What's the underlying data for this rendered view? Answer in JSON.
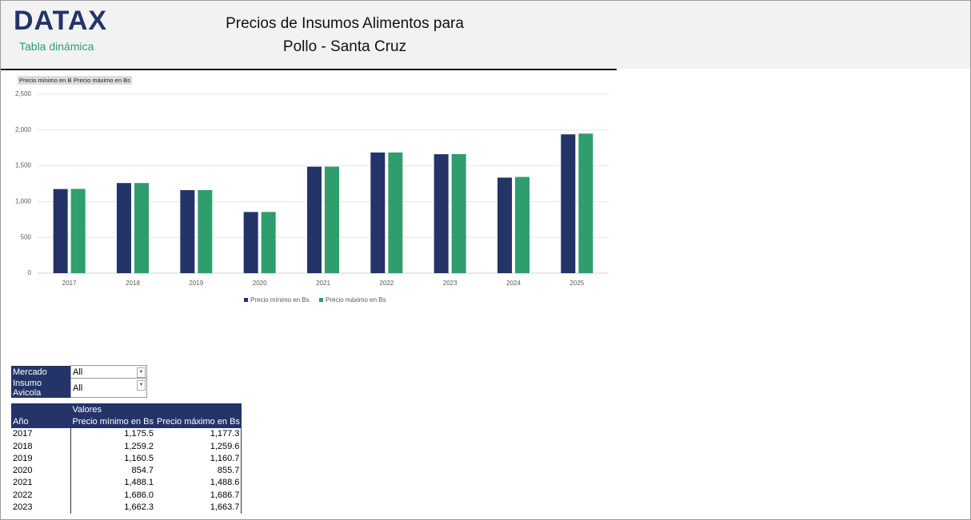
{
  "header": {
    "logo": "DATAX",
    "subtitle": "Tabla dinámica",
    "title_line1": "Precios de Insumos Alimentos para",
    "title_line2": "Pollo - Santa Cruz"
  },
  "chart_data": {
    "type": "bar",
    "categories": [
      "2017",
      "2018",
      "2019",
      "2020",
      "2021",
      "2022",
      "2023",
      "2024",
      "2025"
    ],
    "series": [
      {
        "name": "Precio mínimo en Bs",
        "color": "#243469",
        "values": [
          1175.5,
          1259.2,
          1160.5,
          854.7,
          1488.1,
          1686.0,
          1662.3,
          1335,
          1940
        ]
      },
      {
        "name": "Precio máximo en Bs",
        "color": "#2e9e6e",
        "values": [
          1177.3,
          1259.6,
          1160.7,
          855.7,
          1488.6,
          1686.7,
          1663.7,
          1345,
          1950
        ]
      }
    ],
    "ylim": [
      0,
      2500
    ],
    "yticks": [
      0,
      500,
      {
        "value": 1000,
        "label": "1,000"
      },
      {
        "value": 1500,
        "label": "1,500"
      },
      {
        "value": 2000,
        "label": "2,000"
      },
      {
        "value": 2500,
        "label": "2,500"
      }
    ],
    "grid": true,
    "legend": "bottom"
  },
  "filters": [
    [
      "Mercado",
      "All"
    ],
    [
      "Insumo Avicola",
      "All"
    ]
  ],
  "table": {
    "group_header": "Valores",
    "columns": [
      "Año",
      "Precio mínimo en Bs",
      "Precio máximo en Bs"
    ],
    "rows": [
      [
        "2017",
        "1,175.5",
        "1,177.3"
      ],
      [
        "2018",
        "1,259.2",
        "1,259.6"
      ],
      [
        "2019",
        "1,160.5",
        "1,160.7"
      ],
      [
        "2020",
        "854.7",
        "855.7"
      ],
      [
        "2021",
        "1,488.1",
        "1,488.6"
      ],
      [
        "2022",
        "1,686.0",
        "1,686.7"
      ],
      [
        "2023",
        "1,662.3",
        "1,663.7"
      ]
    ]
  }
}
